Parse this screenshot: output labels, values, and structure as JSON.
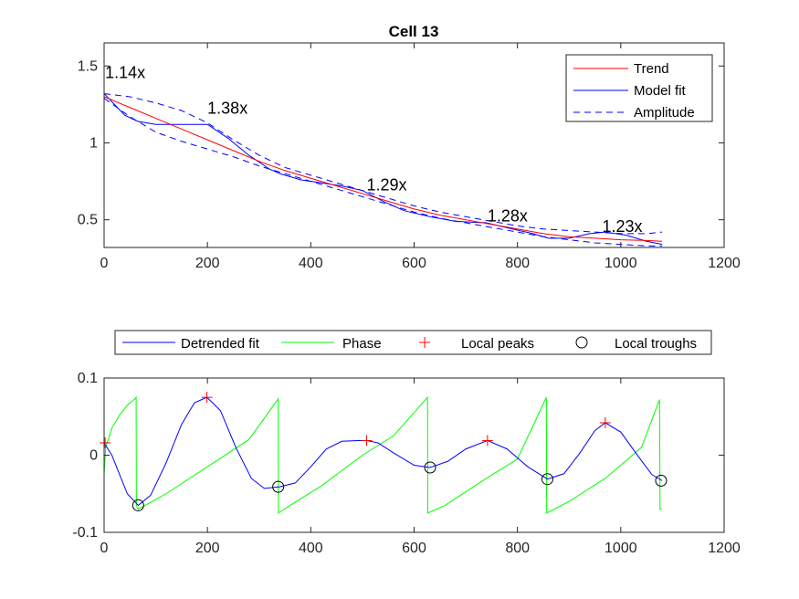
{
  "chart_data": [
    {
      "type": "line",
      "title": "Cell 13",
      "xlim": [
        0,
        1200
      ],
      "ylim": [
        0.32,
        1.65
      ],
      "xticks": [
        0,
        200,
        400,
        600,
        800,
        1000,
        1200
      ],
      "yticks": [
        0.5,
        1,
        1.5
      ],
      "xtick_labels": [
        "0",
        "200",
        "400",
        "600",
        "800",
        "1000",
        "1200"
      ],
      "ytick_labels": [
        "0.5",
        "1",
        "1.5"
      ],
      "grid": false,
      "legend_position": "top-right",
      "series": [
        {
          "name": "Trend",
          "color": "#ff0000",
          "style": "solid",
          "x": [
            0,
            50,
            100,
            150,
            200,
            250,
            300,
            350,
            400,
            450,
            500,
            550,
            600,
            650,
            700,
            750,
            800,
            850,
            900,
            950,
            1000,
            1050,
            1080
          ],
          "y": [
            1.3,
            1.23,
            1.16,
            1.09,
            1.02,
            0.95,
            0.88,
            0.82,
            0.77,
            0.72,
            0.67,
            0.62,
            0.57,
            0.53,
            0.5,
            0.47,
            0.44,
            0.41,
            0.39,
            0.38,
            0.37,
            0.365,
            0.36
          ]
        },
        {
          "name": "Model fit",
          "color": "#0000ff",
          "style": "solid",
          "x": [
            0,
            20,
            40,
            65,
            100,
            150,
            200,
            240,
            280,
            320,
            340,
            380,
            420,
            460,
            500,
            540,
            580,
            630,
            680,
            740,
            790,
            830,
            860,
            900,
            940,
            970,
            1010,
            1050,
            1080
          ],
          "y": [
            1.32,
            1.25,
            1.18,
            1.14,
            1.12,
            1.12,
            1.12,
            1.03,
            0.92,
            0.83,
            0.8,
            0.76,
            0.74,
            0.72,
            0.69,
            0.62,
            0.56,
            0.52,
            0.49,
            0.48,
            0.44,
            0.41,
            0.38,
            0.38,
            0.41,
            0.42,
            0.4,
            0.36,
            0.34
          ]
        },
        {
          "name": "Amplitude",
          "color": "#0000ff",
          "style": "dashed",
          "upper": {
            "x": [
              0,
              50,
              100,
              150,
              200,
              250,
              300,
              350,
              400,
              450,
              500,
              550,
              600,
              650,
              700,
              750,
              800,
              850,
              900,
              950,
              1000,
              1050,
              1080
            ],
            "y": [
              1.32,
              1.3,
              1.26,
              1.21,
              1.13,
              1.02,
              0.92,
              0.84,
              0.79,
              0.74,
              0.69,
              0.64,
              0.59,
              0.55,
              0.52,
              0.49,
              0.46,
              0.44,
              0.43,
              0.42,
              0.41,
              0.41,
              0.42
            ]
          },
          "lower": {
            "x": [
              0,
              50,
              100,
              150,
              200,
              250,
              300,
              350,
              400,
              450,
              500,
              550,
              600,
              650,
              700,
              750,
              800,
              850,
              900,
              950,
              1000,
              1050,
              1080
            ],
            "y": [
              1.29,
              1.17,
              1.07,
              1.01,
              0.96,
              0.91,
              0.85,
              0.8,
              0.75,
              0.7,
              0.65,
              0.6,
              0.55,
              0.51,
              0.48,
              0.45,
              0.42,
              0.39,
              0.37,
              0.35,
              0.34,
              0.33,
              0.33
            ]
          }
        }
      ],
      "annotations": [
        {
          "text": "1.14x",
          "x": 2,
          "y": 1.42
        },
        {
          "text": "1.38x",
          "x": 200,
          "y": 1.19
        },
        {
          "text": "1.29x",
          "x": 508,
          "y": 0.69
        },
        {
          "text": "1.28x",
          "x": 742,
          "y": 0.49
        },
        {
          "text": "1.23x",
          "x": 964,
          "y": 0.42
        }
      ]
    },
    {
      "type": "line",
      "title": "",
      "xlim": [
        0,
        1200
      ],
      "ylim": [
        -0.1,
        0.1
      ],
      "xticks": [
        0,
        200,
        400,
        600,
        800,
        1000,
        1200
      ],
      "yticks": [
        -0.1,
        0,
        0.1
      ],
      "xtick_labels": [
        "0",
        "200",
        "400",
        "600",
        "800",
        "1000",
        "1200"
      ],
      "ytick_labels": [
        "-0.1",
        "0",
        "0.1"
      ],
      "grid": false,
      "legend_position": "top-outside",
      "series": [
        {
          "name": "Detrended fit",
          "color": "#0000ff",
          "style": "solid",
          "x": [
            0,
            15,
            30,
            45,
            66,
            90,
            120,
            150,
            175,
            199,
            225,
            255,
            285,
            310,
            340,
            370,
            400,
            430,
            460,
            490,
            508,
            530,
            560,
            600,
            631,
            665,
            700,
            742,
            780,
            820,
            858,
            890,
            920,
            950,
            970,
            1000,
            1030,
            1060,
            1080
          ],
          "y": [
            0.016,
            0.0,
            -0.025,
            -0.05,
            -0.065,
            -0.052,
            -0.01,
            0.04,
            0.068,
            0.075,
            0.058,
            0.01,
            -0.03,
            -0.043,
            -0.041,
            -0.036,
            -0.015,
            0.008,
            0.018,
            0.019,
            0.019,
            0.016,
            0.003,
            -0.013,
            -0.016,
            -0.008,
            0.008,
            0.019,
            0.008,
            -0.015,
            -0.031,
            -0.024,
            0.002,
            0.032,
            0.042,
            0.03,
            0.002,
            -0.025,
            -0.033
          ]
        },
        {
          "name": "Phase",
          "color": "#00ff00",
          "style": "solid",
          "x": [
            0,
            3,
            15,
            30,
            45,
            60,
            62,
            62.5,
            66,
            120,
            200,
            280,
            337,
            337.5,
            360,
            420,
            500,
            560,
            626,
            626.5,
            660,
            740,
            800,
            856,
            856.5,
            900,
            970,
            1040,
            1075,
            1076,
            1080
          ],
          "y": [
            -0.025,
            0.01,
            0.035,
            0.052,
            0.065,
            0.073,
            0.075,
            -0.065,
            -0.07,
            -0.05,
            -0.015,
            0.02,
            0.073,
            -0.075,
            -0.065,
            -0.04,
            0.0,
            0.025,
            0.075,
            -0.075,
            -0.065,
            -0.03,
            -0.005,
            0.075,
            -0.075,
            -0.06,
            -0.03,
            0.01,
            0.072,
            -0.07,
            -0.07
          ]
        },
        {
          "name": "Local peaks",
          "color": "#ff0000",
          "marker": "+",
          "x": [
            2,
            199,
            508,
            742,
            970
          ],
          "y": [
            0.016,
            0.075,
            0.019,
            0.019,
            0.042
          ]
        },
        {
          "name": "Local troughs",
          "color": "#000000",
          "marker": "o",
          "x": [
            66,
            337,
            631,
            858,
            1078
          ],
          "y": [
            -0.065,
            -0.041,
            -0.016,
            -0.031,
            -0.033
          ]
        }
      ]
    }
  ]
}
